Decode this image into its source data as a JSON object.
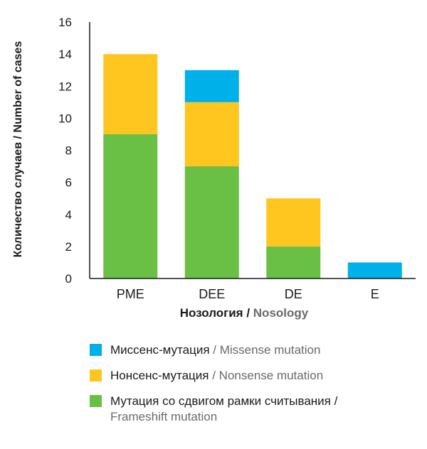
{
  "colors": {
    "missense": "#00b0e8",
    "nonsense": "#ffc620",
    "frameshift": "#6abf45",
    "axis": "#1a1a1a"
  },
  "chart_data": {
    "type": "bar",
    "stacked": true,
    "categories": [
      "PME",
      "DEE",
      "DE",
      "E"
    ],
    "series": [
      {
        "key": "frameshift",
        "name_ru": "Мутация со сдвигом рамки считывания",
        "name_en": "Frameshift mutation",
        "values": [
          9,
          7,
          2,
          0
        ]
      },
      {
        "key": "nonsense",
        "name_ru": "Нонсенс-мутация",
        "name_en": "Nonsense mutation",
        "values": [
          5,
          4,
          3,
          0
        ]
      },
      {
        "key": "missense",
        "name_ru": "Миссенс-мутация",
        "name_en": "Missense mutation",
        "values": [
          0,
          2,
          0,
          1
        ]
      }
    ],
    "yticks": [
      0,
      2,
      4,
      6,
      8,
      10,
      12,
      14,
      16
    ],
    "ylim": [
      0,
      16
    ],
    "ylabel_ru": "Количество случаев",
    "ylabel_sep": " / ",
    "ylabel_en": "Number of cases",
    "xlabel_ru": "Нозология",
    "xlabel_sep": " / ",
    "xlabel_en": "Nosology",
    "legend_order": [
      "missense",
      "nonsense",
      "frameshift"
    ],
    "legend_placement": "bottom",
    "grid": false
  },
  "legend": [
    {
      "key": "missense",
      "ru": "Миссенс-мутация",
      "sep": " / ",
      "en": "Missense mutation"
    },
    {
      "key": "nonsense",
      "ru": "Нонсенс-мутация",
      "sep": " / ",
      "en": "Nonsense mutation"
    },
    {
      "key": "frameshift",
      "ru": "Мутация со сдвигом рамки считывания",
      "sep": " / ",
      "en": "Frameshift mutation"
    }
  ]
}
